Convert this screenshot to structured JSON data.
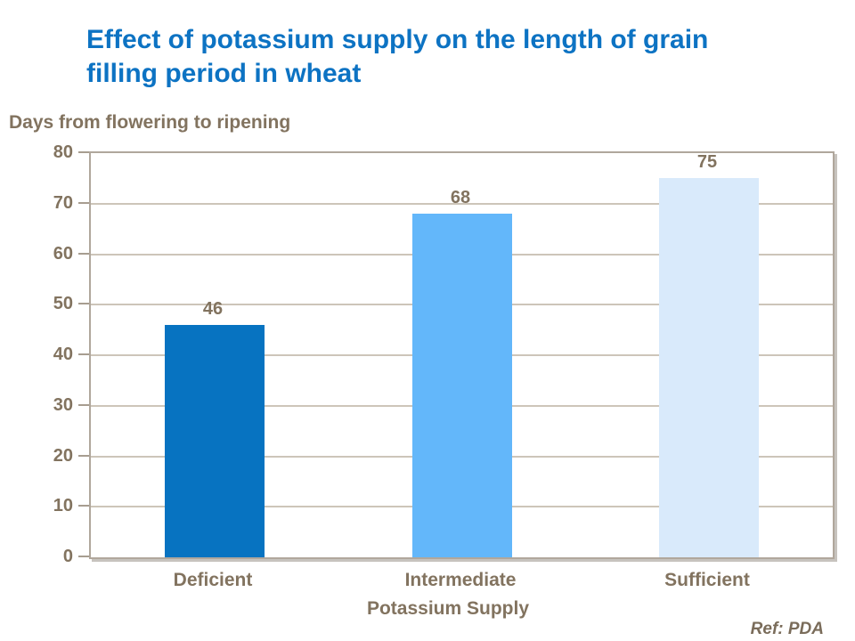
{
  "title": {
    "line1": "Effect of potassium supply on the length of grain",
    "line2": "filling period in wheat"
  },
  "footer": {
    "ref_label": "Ref: PDA"
  },
  "colors": {
    "title_blue": "#0d73c3",
    "axis_text_brown": "#82735f",
    "plot_border": "#b0a79c",
    "gridline": "#cdc5b9",
    "bar_deficient": "#0773c1",
    "bar_intermediate": "#63b7fa",
    "bar_sufficient": "#d9eafb"
  },
  "chart_data": {
    "type": "bar",
    "title": "Effect of potassium supply on the length of grain filling period in wheat",
    "categories": [
      "Deficient",
      "Intermediate",
      "Sufficient"
    ],
    "values": [
      46,
      68,
      75
    ],
    "bar_colors": [
      "#0773c1",
      "#63b7fa",
      "#d9eafb"
    ],
    "value_labels": [
      "46",
      "68",
      "75"
    ],
    "xlabel": "Potassium Supply",
    "ylabel": "Days from flowering to ripening",
    "ylim": [
      0,
      80
    ],
    "ytick_step": 10,
    "yticks": [
      0,
      10,
      20,
      30,
      40,
      50,
      60,
      70,
      80
    ],
    "grid": true,
    "legend": "none"
  }
}
